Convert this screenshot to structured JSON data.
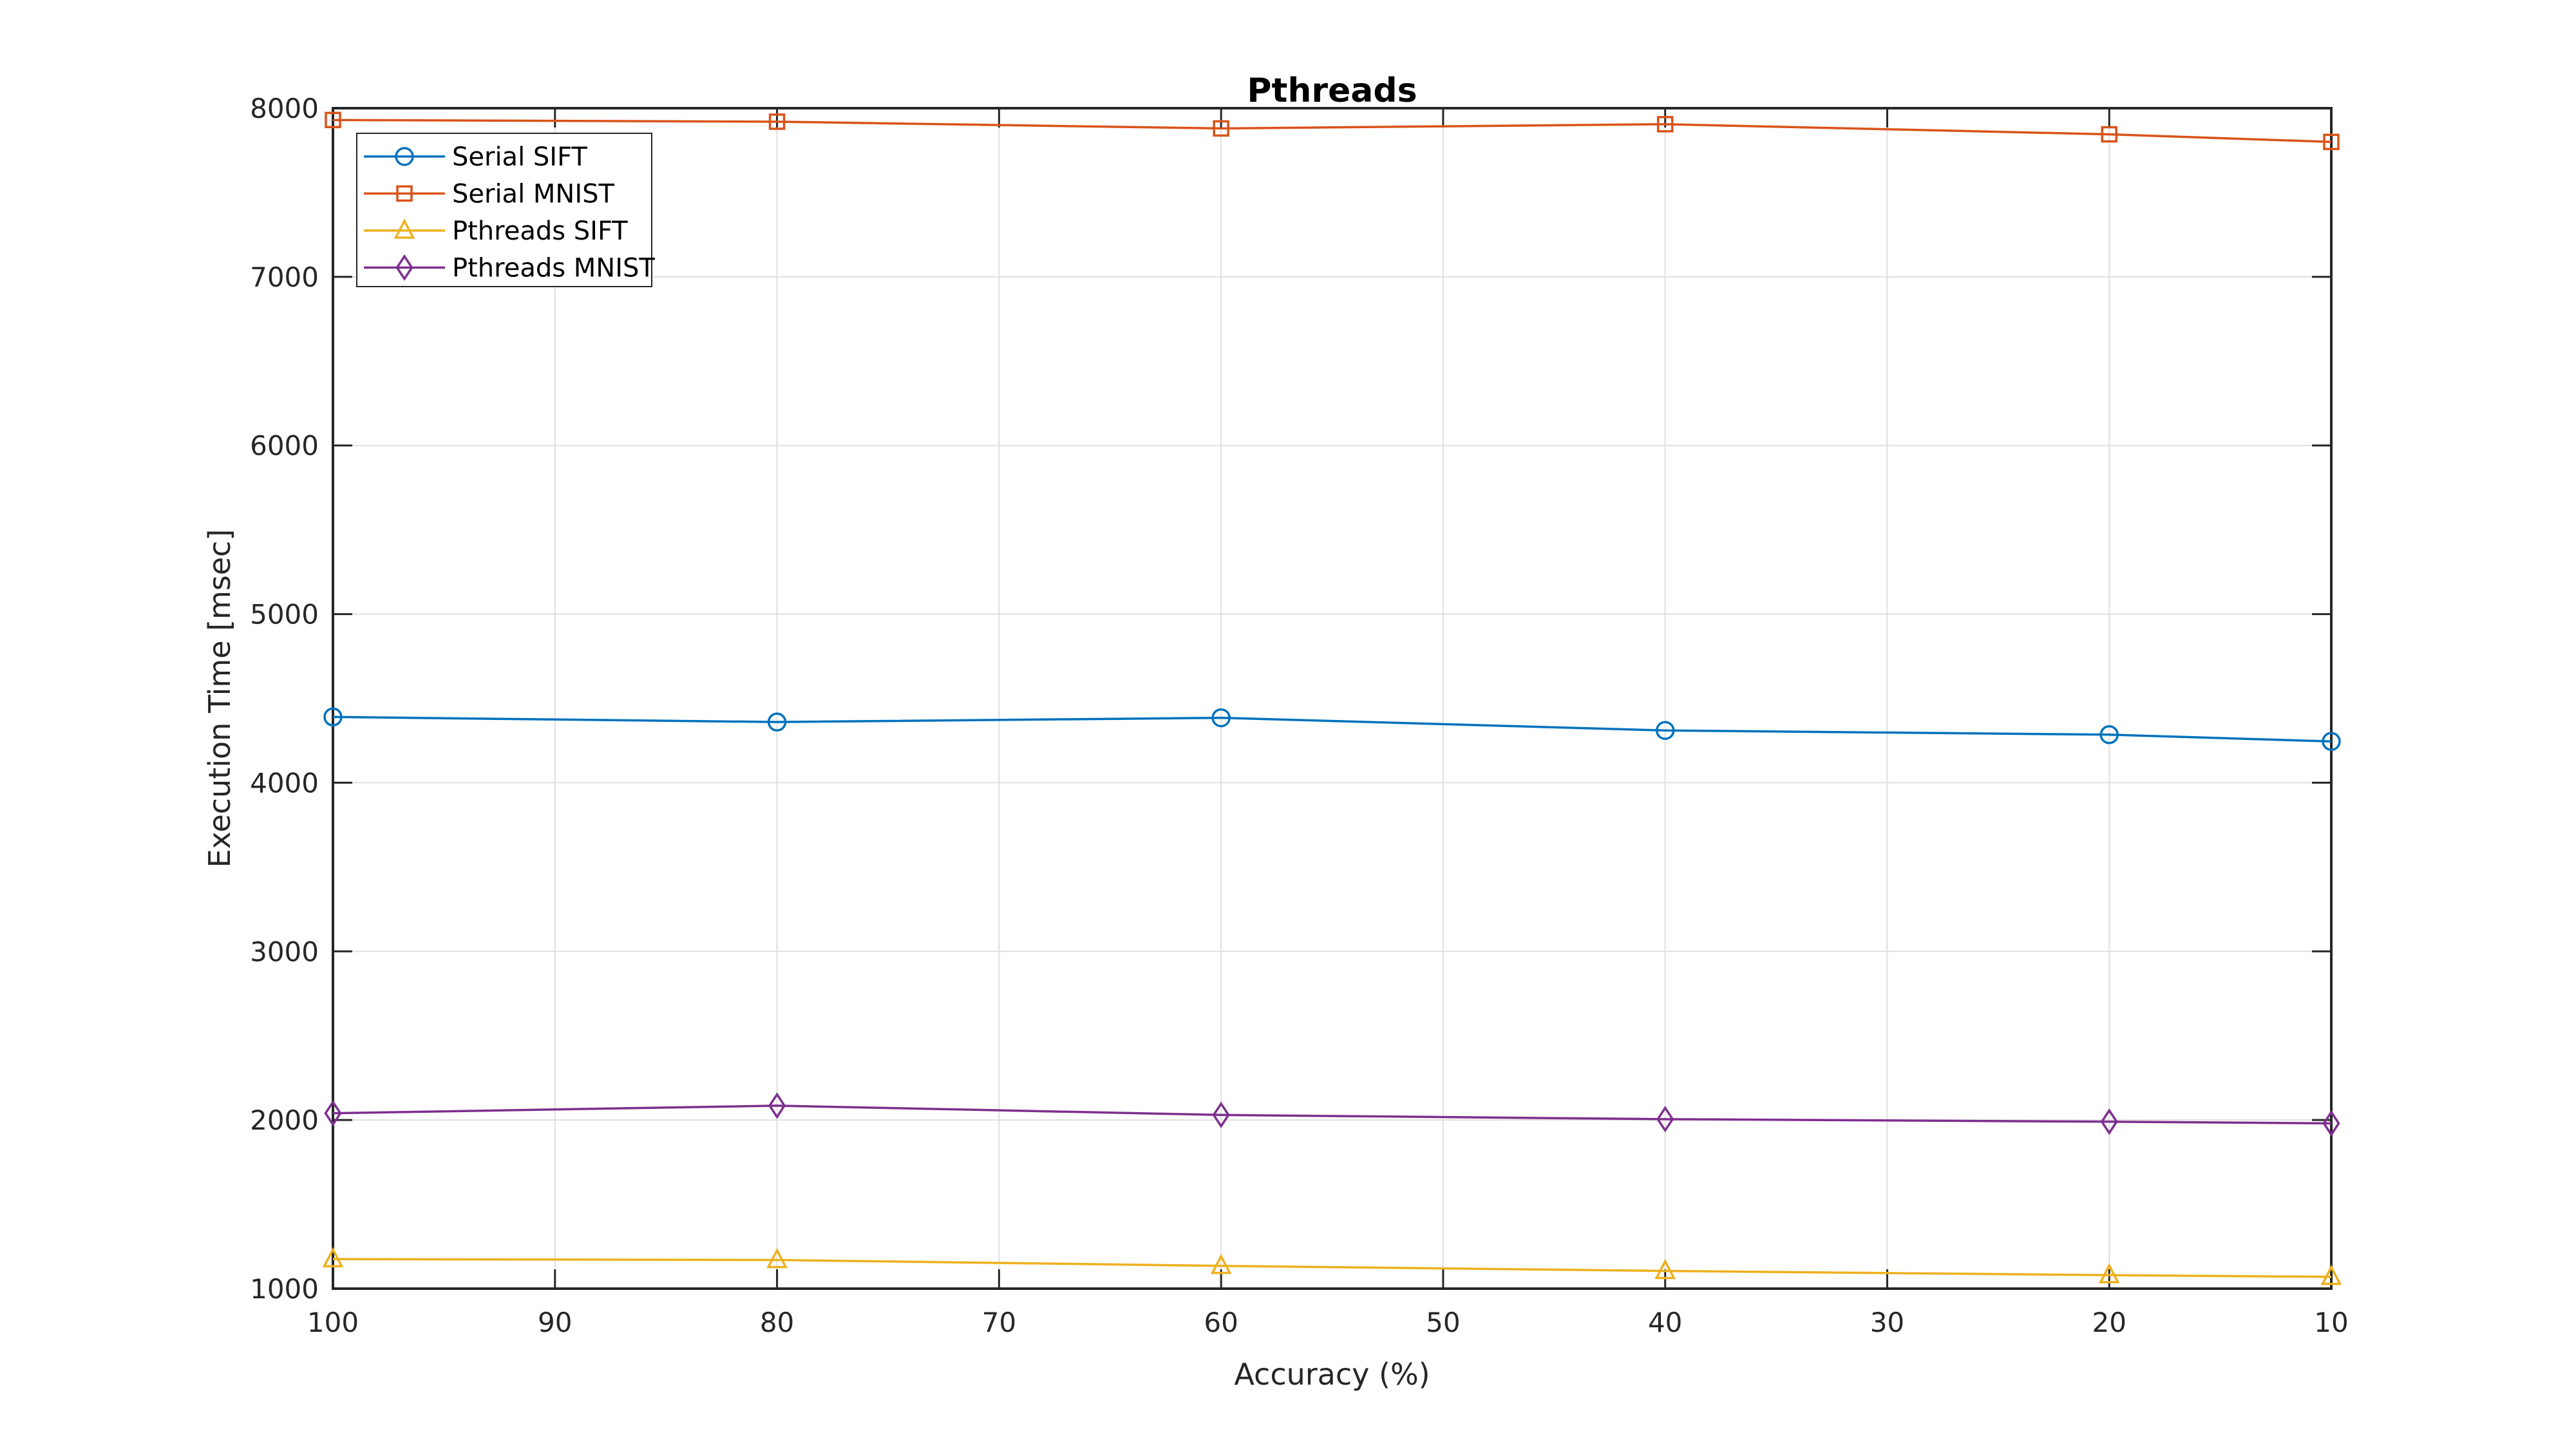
{
  "chart_data": {
    "type": "line",
    "title": "Pthreads",
    "xlabel": "Accuracy (%)",
    "ylabel": "Execution Time [msec]",
    "x": [
      100,
      80,
      60,
      40,
      20,
      10
    ],
    "series": [
      {
        "name": "Serial SIFT",
        "color": "#0072BD",
        "marker": "circle",
        "values": [
          4390,
          4360,
          4385,
          4310,
          4285,
          4245
        ]
      },
      {
        "name": "Serial MNIST",
        "color": "#D95319",
        "marker": "square",
        "values": [
          7930,
          7920,
          7880,
          7905,
          7845,
          7800
        ]
      },
      {
        "name": "Pthreads SIFT",
        "color": "#EDB120",
        "marker": "triangle",
        "values": [
          1175,
          1170,
          1135,
          1105,
          1080,
          1070
        ]
      },
      {
        "name": "Pthreads MNIST",
        "color": "#7E2F8E",
        "marker": "diamond",
        "values": [
          2040,
          2085,
          2030,
          2005,
          1990,
          1980
        ]
      }
    ],
    "xlim": [
      10,
      100
    ],
    "x_reversed": true,
    "ylim": [
      1000,
      8000
    ],
    "xticks": [
      100,
      90,
      80,
      70,
      60,
      50,
      40,
      30,
      20,
      10
    ],
    "yticks": [
      1000,
      2000,
      3000,
      4000,
      5000,
      6000,
      7000,
      8000
    ],
    "grid": true,
    "legend": {
      "position": "northwest",
      "items": [
        "Serial SIFT",
        "Serial MNIST",
        "Pthreads SIFT",
        "Pthreads MNIST"
      ]
    },
    "colors": {
      "background": "#ffffff",
      "axis": "#262626",
      "grid": "#e0e0e0",
      "legend_border": "#262626"
    }
  }
}
